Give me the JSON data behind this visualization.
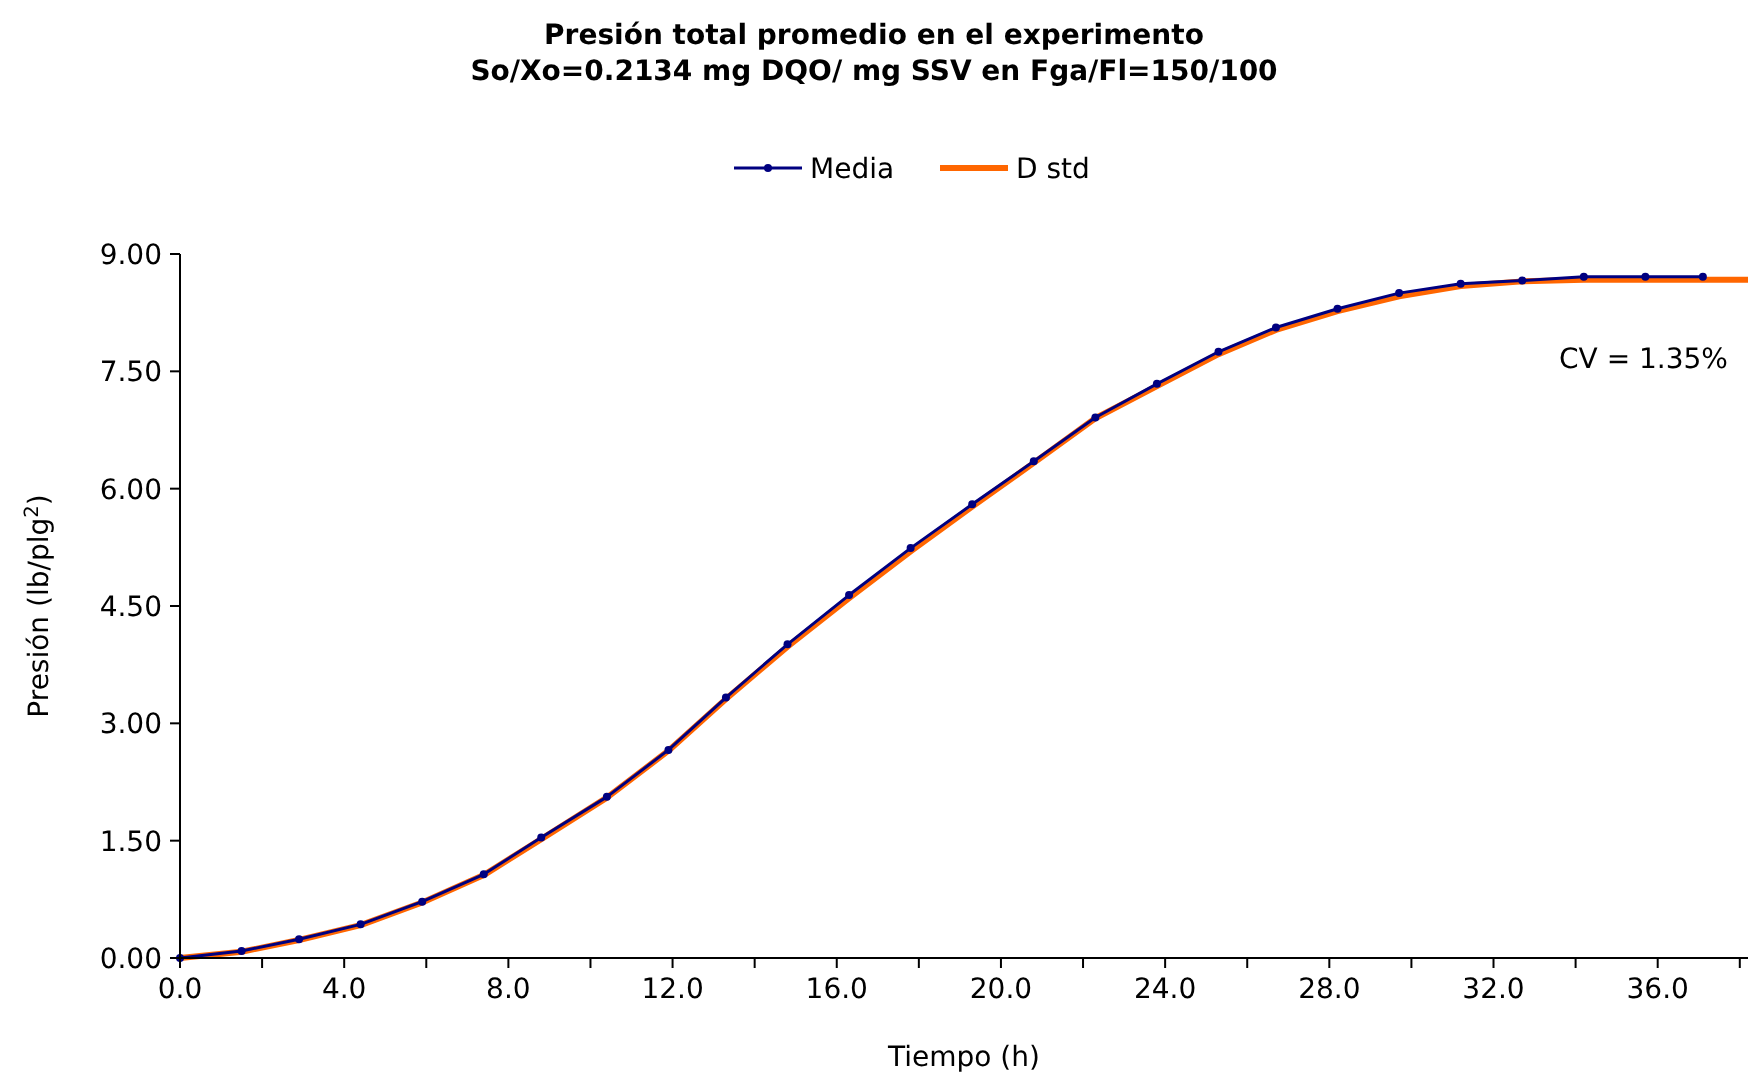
{
  "chart_data": {
    "type": "line",
    "title": "Presión total promedio en el experimento\nSo/Xo=0.2134 mg DQO/ mg SSV en Fga/Fl=150/100",
    "xlabel": "Tiempo (h)",
    "ylabel": "Presión (lb/plg$^{2}$)",
    "x": [
      0,
      1.5,
      2.9,
      4.4,
      5.9,
      7.4,
      8.8,
      10.4,
      11.9,
      13.3,
      14.8,
      16.3,
      17.8,
      19.3,
      20.8,
      22.3,
      23.8,
      25.3,
      26.7,
      28.2,
      29.7,
      31.2,
      32.7,
      34.2,
      35.7,
      37.1
    ],
    "series": [
      {
        "name": "Media",
        "color": "#000080",
        "marker": "circle",
        "values": [
          0,
          0.09,
          0.24,
          0.43,
          0.72,
          1.07,
          1.54,
          2.06,
          2.66,
          3.33,
          4.01,
          4.64,
          5.24,
          5.8,
          6.35,
          6.91,
          7.34,
          7.75,
          8.06,
          8.3,
          8.5,
          8.62,
          8.66,
          8.71,
          8.71,
          8.71
        ]
      },
      {
        "name": "D std",
        "color": "#ff6600",
        "x": [
          0,
          1.5,
          2.9,
          4.4,
          5.9,
          7.4,
          8.8,
          10.4,
          11.9,
          13.3,
          14.8,
          16.3,
          17.8,
          19.3,
          20.8,
          22.3,
          23.8,
          25.3,
          26.7,
          28.2,
          29.7,
          31.2,
          32.7,
          34.2,
          35.7,
          37.1,
          38.2
        ],
        "values": [
          0,
          0.08,
          0.23,
          0.42,
          0.71,
          1.06,
          1.52,
          2.05,
          2.65,
          3.31,
          3.98,
          4.6,
          5.2,
          5.77,
          6.33,
          6.9,
          7.31,
          7.72,
          8.03,
          8.27,
          8.46,
          8.59,
          8.65,
          8.67,
          8.67,
          8.67,
          8.67
        ]
      }
    ],
    "xlim": [
      0,
      38.2
    ],
    "xticks": [
      {
        "value": 0,
        "label": "0.0"
      },
      {
        "value": 2,
        "label": null
      },
      {
        "value": 4,
        "label": "4.0"
      },
      {
        "value": 6,
        "label": null
      },
      {
        "value": 8,
        "label": "8.0"
      },
      {
        "value": 10,
        "label": null
      },
      {
        "value": 12,
        "label": "12.0"
      },
      {
        "value": 14,
        "label": null
      },
      {
        "value": 16,
        "label": "16.0"
      },
      {
        "value": 18,
        "label": null
      },
      {
        "value": 20,
        "label": "20.0"
      },
      {
        "value": 22,
        "label": null
      },
      {
        "value": 24,
        "label": "24.0"
      },
      {
        "value": 26,
        "label": null
      },
      {
        "value": 28,
        "label": "28.0"
      },
      {
        "value": 30,
        "label": null
      },
      {
        "value": 32,
        "label": "32.0"
      },
      {
        "value": 34,
        "label": null
      },
      {
        "value": 36,
        "label": "36.0"
      },
      {
        "value": 38,
        "label": null
      }
    ],
    "ylim": [
      0,
      9
    ],
    "yticks": [
      {
        "value": 0,
        "label": "0.00"
      },
      {
        "value": 1.5,
        "label": "1.50"
      },
      {
        "value": 3,
        "label": "3.00"
      },
      {
        "value": 4.5,
        "label": "4.50"
      },
      {
        "value": 6,
        "label": "6.00"
      },
      {
        "value": 7.5,
        "label": "7.50"
      },
      {
        "value": 9,
        "label": "9.00"
      }
    ],
    "legend": "top",
    "annotations": [
      "CV = 1.35%"
    ]
  }
}
